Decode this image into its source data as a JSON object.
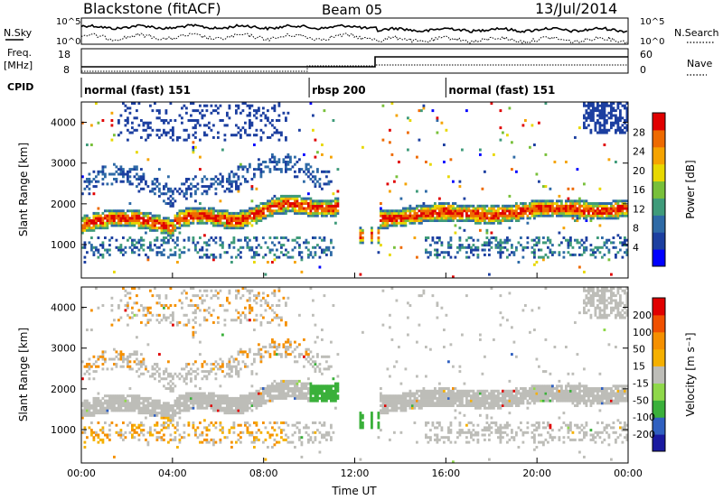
{
  "header": {
    "station": "Blackstone (fitACF)",
    "beam": "Beam 05",
    "date": "13/Jul/2014"
  },
  "noise_panel": {
    "left_label": "N.Sky",
    "right_label": "N.Search",
    "left_ticks": [
      "10^5",
      "10^0"
    ],
    "right_ticks": [
      "10^5",
      "10^0"
    ]
  },
  "freq_panel": {
    "left_label_1": "Freq.",
    "left_label_2": "[MHz]",
    "right_label": "Nave",
    "left_ticks": [
      "18",
      "8"
    ],
    "right_ticks": [
      "60",
      "0"
    ]
  },
  "cpid_panel": {
    "label": "CPID",
    "segments": [
      {
        "text": "normal (fast) 151",
        "start_hour": 0.0
      },
      {
        "text": "rbsp 200",
        "start_hour": 10.0
      },
      {
        "text": "normal (fast) 151",
        "start_hour": 16.0
      }
    ]
  },
  "chart_data": [
    {
      "type": "heatmap",
      "quantity": "power",
      "ylabel": "Slant Range [km]",
      "xlabel": "",
      "xlim_hours": [
        0,
        24
      ],
      "ylim": [
        180,
        4500
      ],
      "yticks": [
        "1000",
        "2000",
        "3000",
        "4000"
      ],
      "colorbar_label": "Power [dB]",
      "colorbar_ticks": [
        "28",
        "24",
        "20",
        "16",
        "12",
        "8",
        "4"
      ],
      "colorbar_colors": [
        "#0000ff",
        "#1c3fa0",
        "#2e6aa6",
        "#3f9b7a",
        "#78c03a",
        "#e8d800",
        "#f5a300",
        "#ee6a00",
        "#e00000"
      ]
    },
    {
      "type": "heatmap",
      "quantity": "velocity",
      "ylabel": "Slant Range [km]",
      "xlabel": "Time UT",
      "xlim_hours": [
        0,
        24
      ],
      "ylim": [
        180,
        4500
      ],
      "yticks": [
        "1000",
        "2000",
        "3000",
        "4000"
      ],
      "xticks": [
        "00:00",
        "04:00",
        "08:00",
        "12:00",
        "16:00",
        "20:00",
        "00:00"
      ],
      "colorbar_label": "Velocity [m s⁻¹]",
      "colorbar_ticks": [
        "200",
        "100",
        "50",
        "15",
        "-15",
        "-50",
        "-100",
        "-200"
      ],
      "colorbar_colors": [
        "#e00000",
        "#f05000",
        "#f59000",
        "#f5b000",
        "#bdbdb8",
        "#8fd84a",
        "#3ab03a",
        "#3060c0",
        "#1a1aa0"
      ]
    }
  ]
}
